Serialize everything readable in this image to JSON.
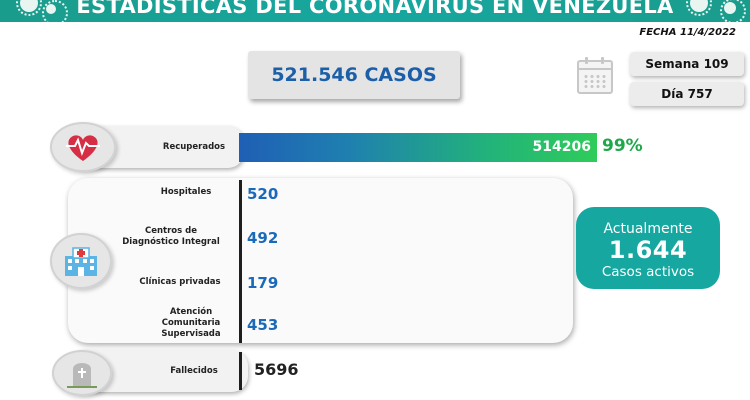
{
  "header": {
    "title": "ESTADÍSTICAS DEL CORONAVIRUS EN VENEZUELA"
  },
  "fecha": "FECHA 11/4/2022",
  "total": "521.546 CASOS",
  "semana": "Semana 109",
  "dia": "Día 757",
  "recuperados": {
    "label": "Recuperados",
    "value": "514206",
    "percent": "99%"
  },
  "hospitalizados": {
    "hospitales": {
      "label": "Hospitales",
      "value": "520"
    },
    "cdi": {
      "label_line1": "Centros de",
      "label_line2": "Diagnóstico Integral",
      "value": "492"
    },
    "clinicas": {
      "label": "Clínicas privadas",
      "value": "179"
    },
    "acs": {
      "label_line1": "Atención",
      "label_line2": "Comunitaria",
      "label_line3": "Supervisada",
      "value": "453"
    }
  },
  "activos": {
    "line1": "Actualmente",
    "value": "1.644",
    "line3": "Casos activos"
  },
  "fallecidos": {
    "label": "Fallecidos",
    "value": "5696"
  },
  "colors": {
    "teal": "#15a7a0",
    "blue": "#1b6ab9",
    "green": "#1ea84a",
    "heart": "#d62f45"
  },
  "icons": [
    "virus-icon",
    "calendar-icon",
    "heart-pulse-icon",
    "hospital-icon",
    "tombstone-icon"
  ]
}
